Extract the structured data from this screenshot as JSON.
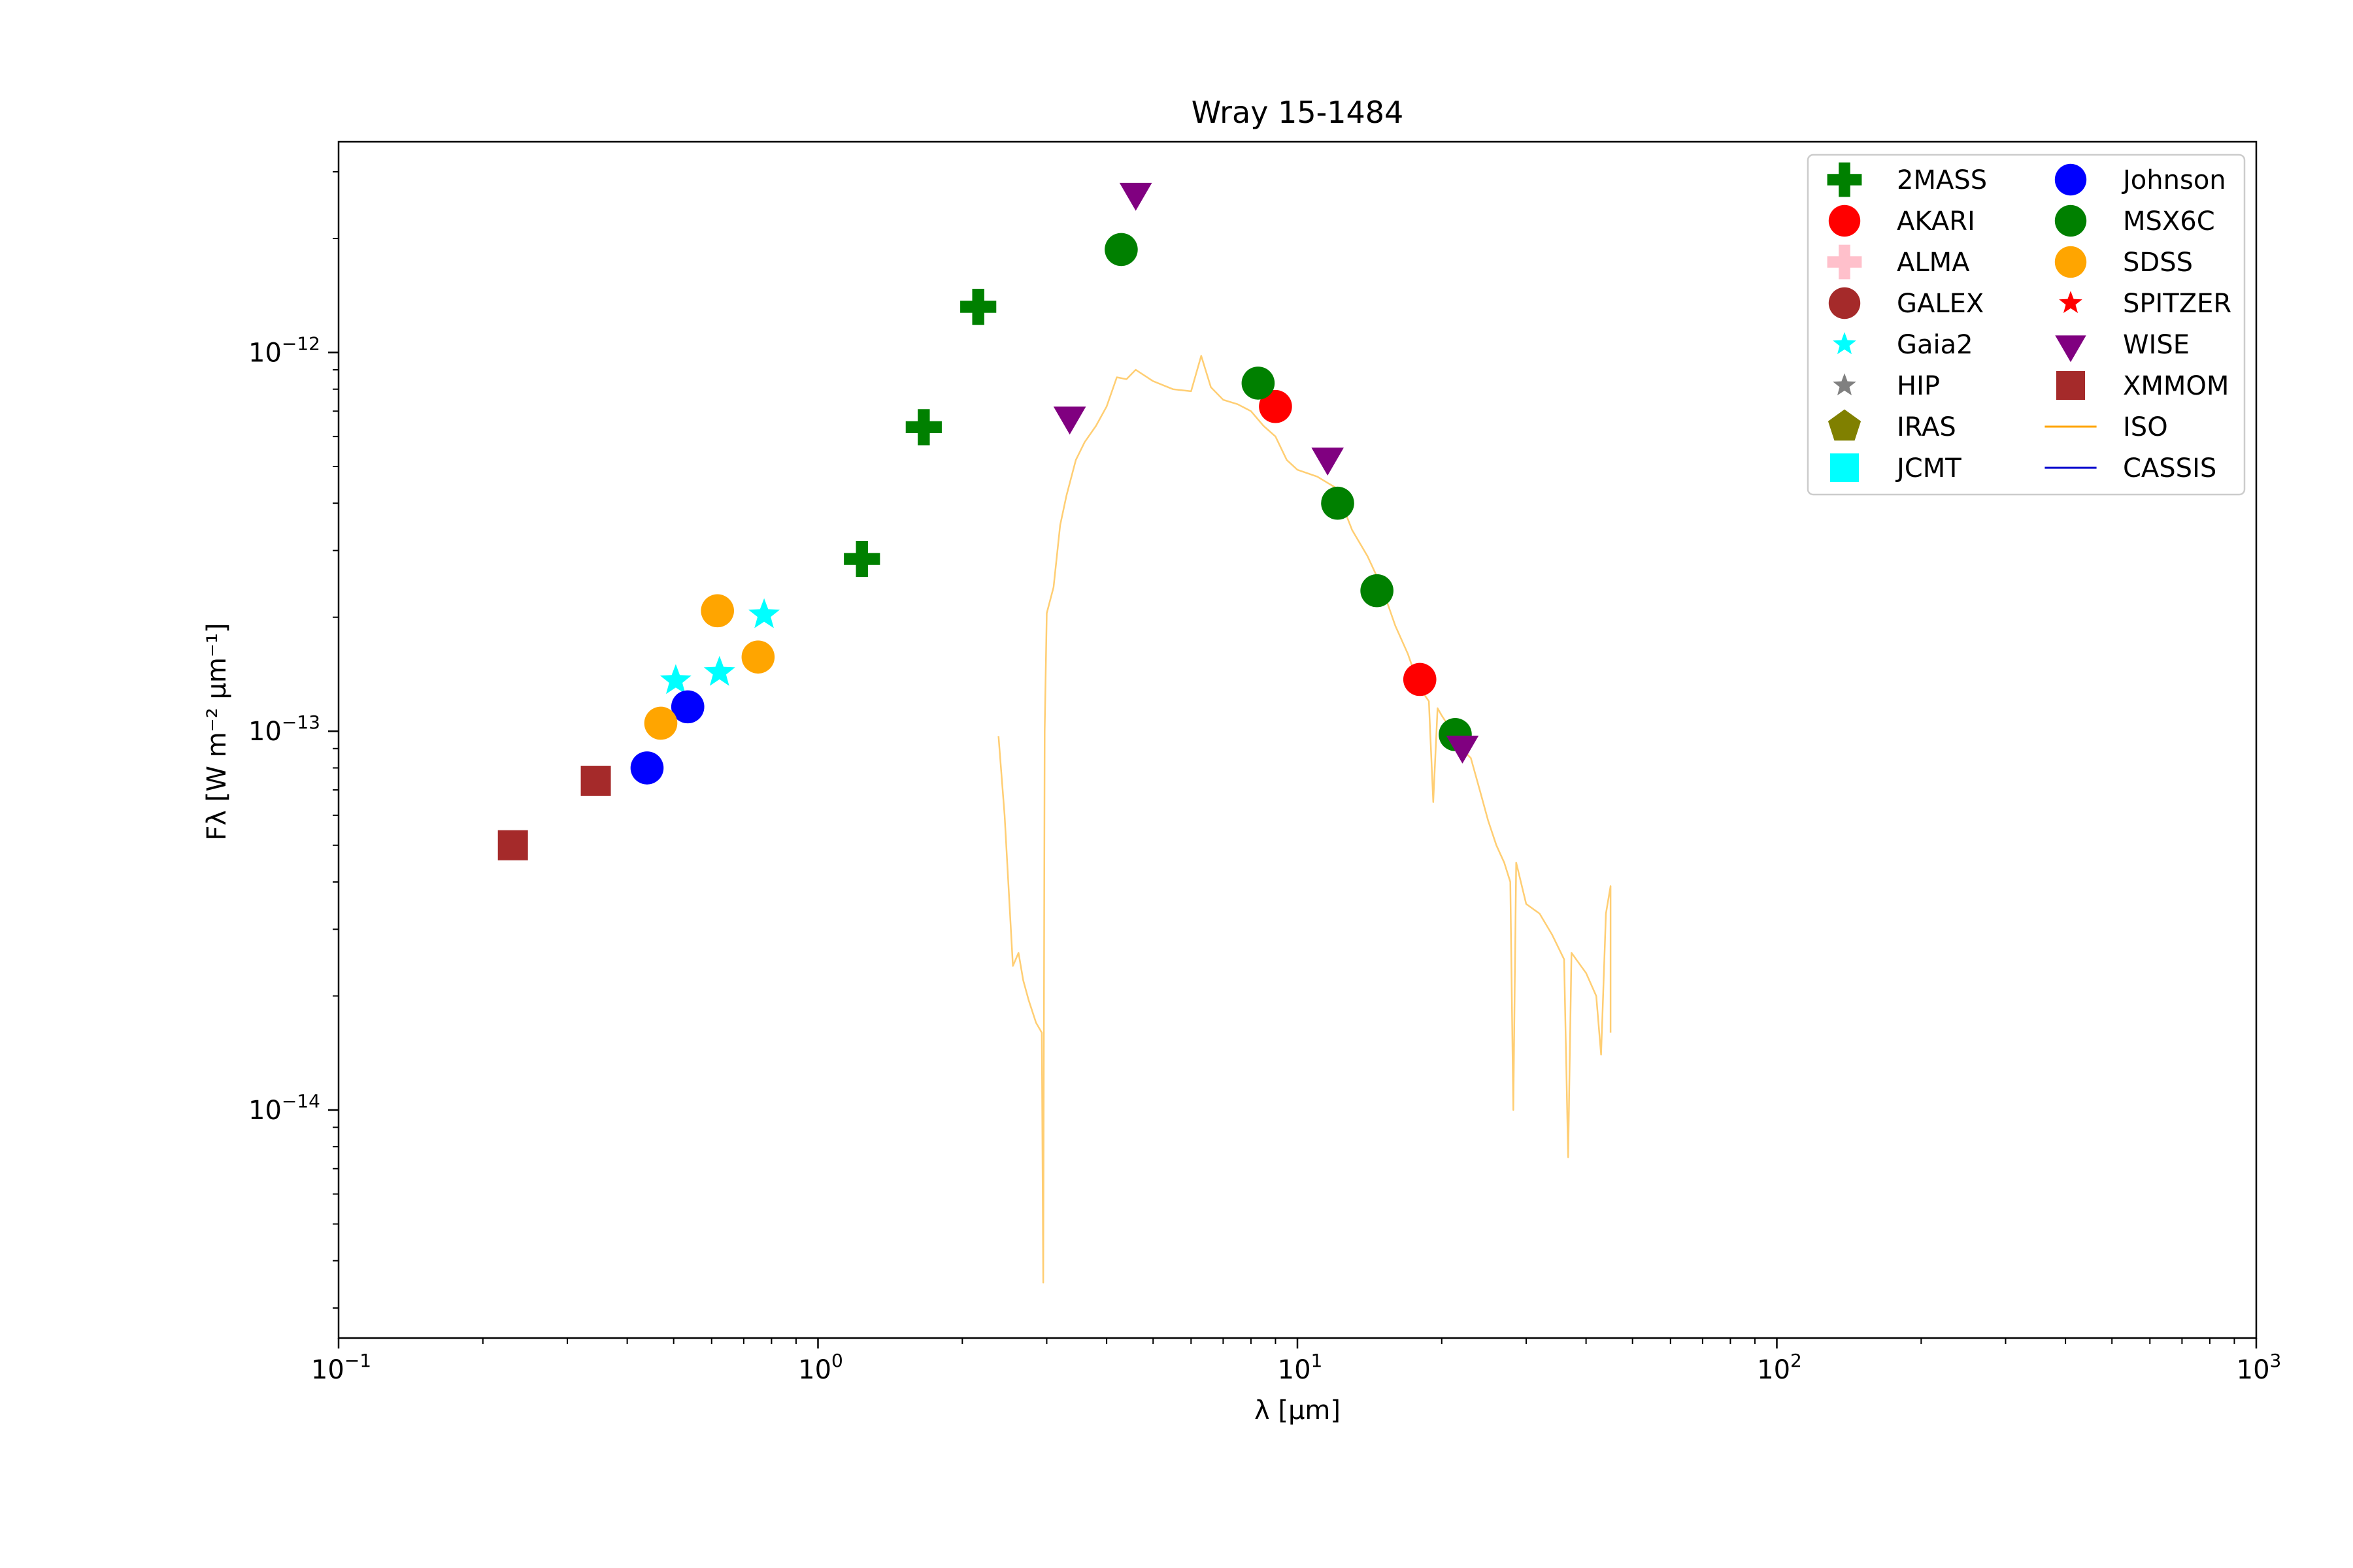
{
  "chart_data": {
    "type": "scatter",
    "title": "Wray 15-1484",
    "xlabel": "λ [μm]",
    "ylabel": "Fλ [W m⁻² μm⁻¹]",
    "xscale": "log",
    "yscale": "log",
    "xlim": [
      0.1,
      1000
    ],
    "ylim": [
      2.5e-15,
      3.6e-12
    ],
    "grid": false,
    "legend_position": "top-right",
    "x_ticks": [
      {
        "base": "10",
        "exp": "−1"
      },
      {
        "base": "10",
        "exp": "0"
      },
      {
        "base": "10",
        "exp": "1"
      },
      {
        "base": "10",
        "exp": "2"
      },
      {
        "base": "10",
        "exp": "3"
      }
    ],
    "y_ticks": [
      {
        "base": "10",
        "exp": "−14"
      },
      {
        "base": "10",
        "exp": "−13"
      },
      {
        "base": "10",
        "exp": "−12"
      }
    ],
    "series": [
      {
        "name": "2MASS",
        "marker": "plus",
        "color": "#008000",
        "points": [
          [
            1.235,
            2.85e-13
          ],
          [
            1.662,
            6.35e-13
          ],
          [
            2.159,
            1.32e-12
          ]
        ]
      },
      {
        "name": "AKARI",
        "marker": "circle",
        "color": "#ff0000",
        "points": [
          [
            9.0,
            7.2e-13
          ],
          [
            18.0,
            1.37e-13
          ]
        ]
      },
      {
        "name": "ALMA",
        "marker": "plus",
        "color": "#ffc0cb",
        "points": []
      },
      {
        "name": "GALEX",
        "marker": "circle",
        "color": "#a52a2a",
        "points": []
      },
      {
        "name": "Gaia2",
        "marker": "star",
        "color": "#00ffff",
        "points": [
          [
            0.505,
            1.36e-13
          ],
          [
            0.623,
            1.43e-13
          ],
          [
            0.772,
            2.03e-13
          ]
        ]
      },
      {
        "name": "HIP",
        "marker": "star",
        "color": "#808080",
        "points": []
      },
      {
        "name": "IRAS",
        "marker": "pentagon",
        "color": "#808000",
        "points": []
      },
      {
        "name": "JCMT",
        "marker": "square",
        "color": "#00ffff",
        "points": []
      },
      {
        "name": "Johnson",
        "marker": "circle",
        "color": "#0000ff",
        "points": [
          [
            0.44,
            8e-14
          ],
          [
            0.535,
            1.16e-13
          ]
        ]
      },
      {
        "name": "MSX6C",
        "marker": "circle",
        "color": "#008000",
        "points": [
          [
            4.29,
            1.87e-12
          ],
          [
            8.28,
            8.3e-13
          ],
          [
            12.13,
            4e-13
          ],
          [
            14.65,
            2.35e-13
          ],
          [
            21.34,
            9.8e-14
          ]
        ]
      },
      {
        "name": "SDSS",
        "marker": "circle",
        "color": "#ffa500",
        "points": [
          [
            0.47,
            1.05e-13
          ],
          [
            0.617,
            2.08e-13
          ],
          [
            0.75,
            1.57e-13
          ]
        ]
      },
      {
        "name": "SPITZER",
        "marker": "star",
        "color": "#ff0000",
        "points": []
      },
      {
        "name": "WISE",
        "marker": "triangle-down",
        "color": "#800080",
        "points": [
          [
            3.35,
            6.8e-13
          ],
          [
            4.6,
            2.65e-12
          ],
          [
            11.56,
            5.3e-13
          ],
          [
            22.09,
            9.2e-14
          ]
        ]
      },
      {
        "name": "XMMOM",
        "marker": "square",
        "color": "#a52a2a",
        "points": [
          [
            0.231,
            5e-14
          ],
          [
            0.344,
            7.4e-14
          ]
        ]
      },
      {
        "name": "ISO",
        "marker": "line",
        "color": "#ffa500",
        "points": [
          [
            2.38,
            9.7e-14
          ],
          [
            2.45,
            6e-14
          ],
          [
            2.55,
            2.4e-14
          ],
          [
            2.62,
            2.6e-14
          ],
          [
            2.68,
            2.2e-14
          ],
          [
            2.75,
            1.95e-14
          ],
          [
            2.85,
            1.7e-14
          ],
          [
            2.93,
            1.6e-14
          ],
          [
            2.95,
            3.5e-15
          ],
          [
            2.97,
            1e-13
          ],
          [
            3.0,
            2.05e-13
          ],
          [
            3.1,
            2.4e-13
          ],
          [
            3.2,
            3.5e-13
          ],
          [
            3.3,
            4.2e-13
          ],
          [
            3.45,
            5.2e-13
          ],
          [
            3.6,
            5.8e-13
          ],
          [
            3.8,
            6.4e-13
          ],
          [
            4.0,
            7.2e-13
          ],
          [
            4.2,
            8.6e-13
          ],
          [
            4.4,
            8.5e-13
          ],
          [
            4.6,
            9e-13
          ],
          [
            5.0,
            8.4e-13
          ],
          [
            5.5,
            8e-13
          ],
          [
            6.0,
            7.9e-13
          ],
          [
            6.3,
            9.8e-13
          ],
          [
            6.6,
            8.1e-13
          ],
          [
            7.0,
            7.5e-13
          ],
          [
            7.5,
            7.3e-13
          ],
          [
            8.0,
            7e-13
          ],
          [
            8.5,
            6.4e-13
          ],
          [
            9.0,
            6e-13
          ],
          [
            9.5,
            5.2e-13
          ],
          [
            10.0,
            4.9e-13
          ],
          [
            11.0,
            4.7e-13
          ],
          [
            12.0,
            4.4e-13
          ],
          [
            13.0,
            3.4e-13
          ],
          [
            14.0,
            2.9e-13
          ],
          [
            15.0,
            2.4e-13
          ],
          [
            16.0,
            1.9e-13
          ],
          [
            17.0,
            1.6e-13
          ],
          [
            18.0,
            1.3e-13
          ],
          [
            18.8,
            1.2e-13
          ],
          [
            19.2,
            6.5e-14
          ],
          [
            19.6,
            1.15e-13
          ],
          [
            20.0,
            1.1e-13
          ],
          [
            21.0,
            1e-13
          ],
          [
            22.0,
            9e-14
          ],
          [
            23.0,
            8.5e-14
          ],
          [
            24.0,
            7e-14
          ],
          [
            25.0,
            5.8e-14
          ],
          [
            26.0,
            5e-14
          ],
          [
            27.0,
            4.5e-14
          ],
          [
            27.8,
            4e-14
          ],
          [
            28.2,
            1e-14
          ],
          [
            28.6,
            4.5e-14
          ],
          [
            30.0,
            3.5e-14
          ],
          [
            32.0,
            3.3e-14
          ],
          [
            34.0,
            2.9e-14
          ],
          [
            36.0,
            2.5e-14
          ],
          [
            36.7,
            7.5e-15
          ],
          [
            37.3,
            2.6e-14
          ],
          [
            40.0,
            2.3e-14
          ],
          [
            42.0,
            2e-14
          ],
          [
            43.0,
            1.4e-14
          ],
          [
            44.0,
            3.3e-14
          ],
          [
            45.0,
            3.9e-14
          ],
          [
            45.0,
            1.6e-14
          ]
        ]
      },
      {
        "name": "CASSIS",
        "marker": "line",
        "color": "#0000cc",
        "points": []
      }
    ]
  }
}
